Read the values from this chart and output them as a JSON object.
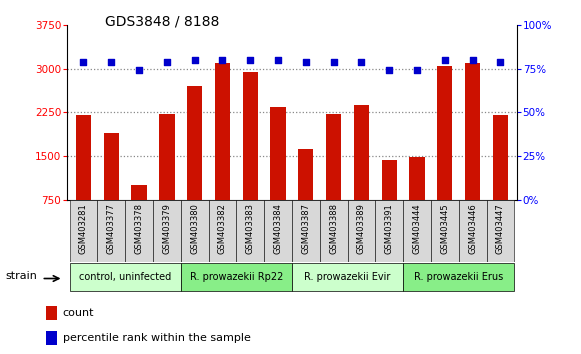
{
  "title": "GDS3848 / 8188",
  "samples": [
    "GSM403281",
    "GSM403377",
    "GSM403378",
    "GSM403379",
    "GSM403380",
    "GSM403382",
    "GSM403383",
    "GSM403384",
    "GSM403387",
    "GSM403388",
    "GSM403389",
    "GSM403391",
    "GSM403444",
    "GSM403445",
    "GSM403446",
    "GSM403447"
  ],
  "counts": [
    2200,
    1900,
    1000,
    2230,
    2700,
    3100,
    2950,
    2350,
    1620,
    2230,
    2380,
    1430,
    1480,
    3040,
    3100,
    2200
  ],
  "percentiles": [
    79,
    79,
    74,
    79,
    80,
    80,
    80,
    80,
    79,
    79,
    79,
    74,
    74,
    80,
    80,
    79
  ],
  "groups": [
    {
      "label": "control, uninfected",
      "start": 0,
      "end": 4,
      "color": "#ccffcc"
    },
    {
      "label": "R. prowazekii Rp22",
      "start": 4,
      "end": 8,
      "color": "#88ee88"
    },
    {
      "label": "R. prowazekii Evir",
      "start": 8,
      "end": 12,
      "color": "#ccffcc"
    },
    {
      "label": "R. prowazekii Erus",
      "start": 12,
      "end": 16,
      "color": "#88ee88"
    }
  ],
  "ylim_left": [
    750,
    3750
  ],
  "ylim_right": [
    0,
    100
  ],
  "yticks_left": [
    750,
    1500,
    2250,
    3000,
    3750
  ],
  "yticks_right": [
    0,
    25,
    50,
    75,
    100
  ],
  "bar_color": "#cc1100",
  "dot_color": "#0000cc",
  "sample_bg": "#d8d8d8",
  "plot_bg": "#ffffff",
  "grid_color": "#888888",
  "title_fontsize": 10,
  "tick_fontsize": 7.5,
  "label_fontsize": 7.5
}
